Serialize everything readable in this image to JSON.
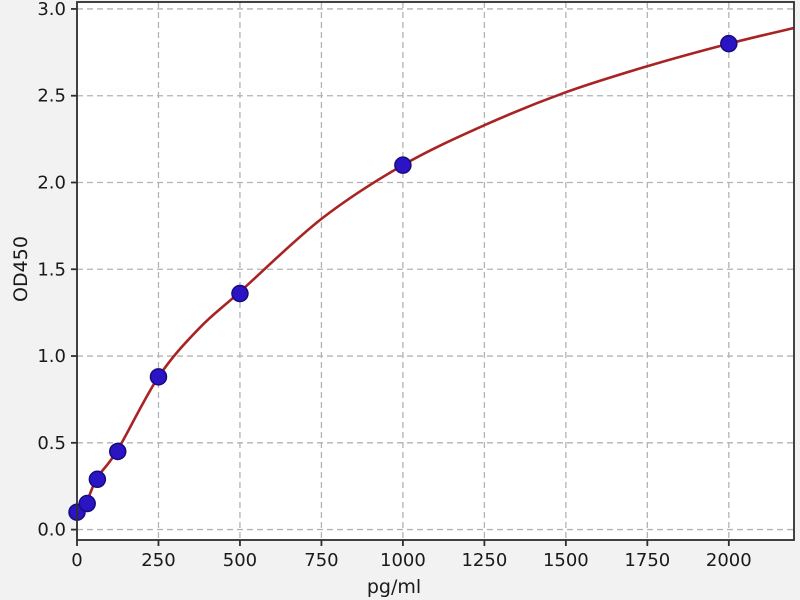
{
  "figure": {
    "background_color": "#f2f2f2",
    "plot_background_color": "#ffffff",
    "spine_color": "#2e2e2e",
    "tick_label_color": "#1a1a1a"
  },
  "chart_data": {
    "type": "scatter",
    "title": "",
    "xlabel": "pg/ml",
    "ylabel": "OD450",
    "xlim": [
      0,
      2200
    ],
    "ylim": [
      -0.06,
      3.04
    ],
    "x_ticks": [
      0,
      250,
      500,
      750,
      1000,
      1250,
      1500,
      1750,
      2000
    ],
    "y_ticks": [
      0.0,
      0.5,
      1.0,
      1.5,
      2.0,
      2.5,
      3.0
    ],
    "grid": {
      "visible": true,
      "style": "dashed",
      "color": "#b3b3b3"
    },
    "legend": {
      "visible": false
    },
    "series": [
      {
        "name": "standard-points",
        "type": "scatter",
        "marker": "circle",
        "marker_color": "#2a14c4",
        "marker_edge_color": "#190b7e",
        "points": [
          [
            0,
            0.1
          ],
          [
            31.25,
            0.15
          ],
          [
            62.5,
            0.29
          ],
          [
            125,
            0.45
          ],
          [
            250,
            0.88
          ],
          [
            500,
            1.36
          ],
          [
            1000,
            2.1
          ],
          [
            2000,
            2.8
          ]
        ]
      },
      {
        "name": "fit-curve",
        "type": "line",
        "line_color": "#a82424",
        "points": [
          [
            0,
            0.08
          ],
          [
            31.25,
            0.17
          ],
          [
            62.5,
            0.3
          ],
          [
            125,
            0.46
          ],
          [
            250,
            0.88
          ],
          [
            375,
            1.16
          ],
          [
            500,
            1.37
          ],
          [
            750,
            1.79
          ],
          [
            1000,
            2.1
          ],
          [
            1250,
            2.33
          ],
          [
            1500,
            2.52
          ],
          [
            1750,
            2.67
          ],
          [
            2000,
            2.8
          ],
          [
            2200,
            2.89
          ]
        ]
      }
    ]
  }
}
